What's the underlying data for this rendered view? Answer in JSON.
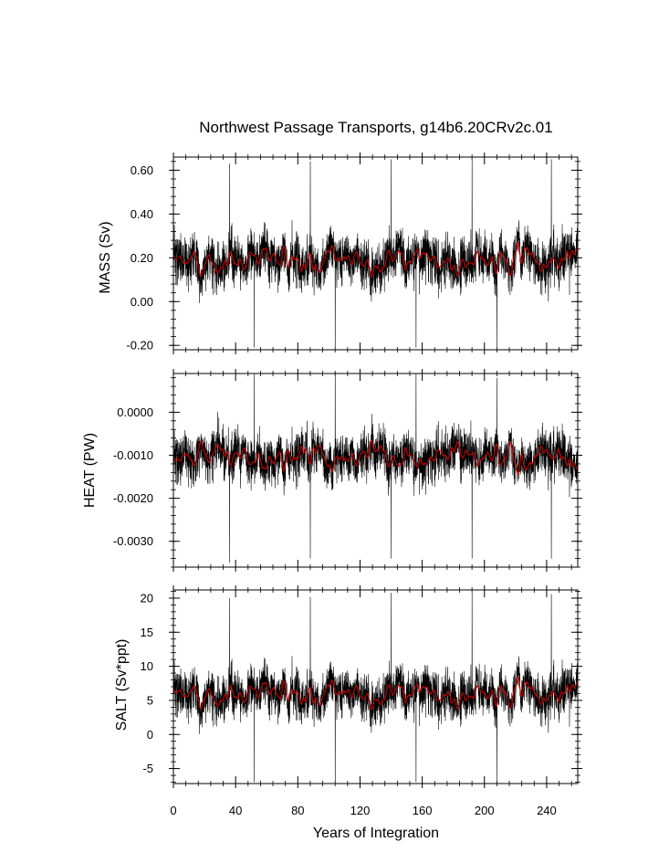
{
  "chart_data": {
    "title": "Northwest Passage Transports, g14b6.20CRv2c.01",
    "xlabel": "Years of Integration",
    "x_range": [
      0,
      260
    ],
    "x_ticks": [
      0,
      40,
      80,
      120,
      160,
      200,
      240
    ],
    "x_tick_labels": [
      "0",
      "40",
      "80",
      "120",
      "160",
      "200",
      "240"
    ],
    "panels": [
      {
        "type": "line",
        "ylabel": "MASS (Sv)",
        "y_range": [
          -0.22,
          0.66
        ],
        "y_ticks": [
          -0.2,
          0.0,
          0.2,
          0.4,
          0.6
        ],
        "y_tick_labels": [
          "-0.20",
          "0.00",
          "0.20",
          "0.40",
          "0.60"
        ],
        "mean": 0.19,
        "noise_spread": 0.28,
        "smooth_spread": 0.05,
        "series": [
          {
            "role": "monthly",
            "color": "#000000"
          },
          {
            "role": "annual",
            "color": "#cc0000"
          }
        ],
        "spikes": [
          {
            "year": 36,
            "value": 0.63
          },
          {
            "year": 52,
            "value": -0.21
          },
          {
            "year": 88,
            "value": 0.64
          },
          {
            "year": 104,
            "value": -0.21
          },
          {
            "year": 140,
            "value": 0.65
          },
          {
            "year": 156,
            "value": -0.21
          },
          {
            "year": 192,
            "value": 0.65
          },
          {
            "year": 208,
            "value": -0.21
          },
          {
            "year": 243,
            "value": 0.65
          }
        ]
      },
      {
        "type": "line",
        "ylabel": "HEAT (PW)",
        "y_range": [
          -0.0036,
          0.0009
        ],
        "y_ticks": [
          -0.003,
          -0.002,
          -0.001,
          0.0
        ],
        "y_tick_labels": [
          "-0.0030",
          "-0.0020",
          "-0.0010",
          "0.0000"
        ],
        "mean": -0.00105,
        "noise_spread": 0.0014,
        "smooth_spread": 0.00025,
        "series": [
          {
            "role": "monthly",
            "color": "#000000"
          },
          {
            "role": "annual",
            "color": "#cc0000"
          }
        ],
        "spikes": [
          {
            "year": 36,
            "value": -0.0035
          },
          {
            "year": 52,
            "value": 0.0009
          },
          {
            "year": 88,
            "value": -0.0034
          },
          {
            "year": 104,
            "value": 0.0009
          },
          {
            "year": 140,
            "value": -0.0034
          },
          {
            "year": 156,
            "value": 0.0009
          },
          {
            "year": 192,
            "value": -0.0034
          },
          {
            "year": 208,
            "value": 0.0008
          },
          {
            "year": 243,
            "value": -0.0034
          }
        ]
      },
      {
        "type": "line",
        "ylabel": "SALT (Sv*ppt)",
        "y_range": [
          -7.2,
          21.2
        ],
        "y_ticks": [
          -5,
          0,
          5,
          10,
          15,
          20
        ],
        "y_tick_labels": [
          "-5",
          "0",
          "5",
          "10",
          "15",
          "20"
        ],
        "mean": 6.0,
        "noise_spread": 8.5,
        "smooth_spread": 1.5,
        "series": [
          {
            "role": "monthly",
            "color": "#000000"
          },
          {
            "role": "annual",
            "color": "#cc0000"
          }
        ],
        "spikes": [
          {
            "year": 36,
            "value": 20
          },
          {
            "year": 52,
            "value": -7
          },
          {
            "year": 88,
            "value": 20.2
          },
          {
            "year": 104,
            "value": -7
          },
          {
            "year": 140,
            "value": 20.8
          },
          {
            "year": 156,
            "value": -7
          },
          {
            "year": 192,
            "value": 20.8
          },
          {
            "year": 208,
            "value": -7
          },
          {
            "year": 243,
            "value": 20.6
          }
        ]
      }
    ]
  }
}
